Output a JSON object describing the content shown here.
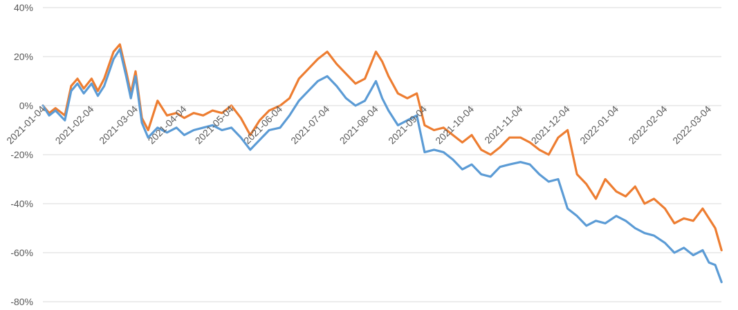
{
  "chart_data": {
    "type": "line",
    "grid": "horizontal",
    "x_axis_crosses_at": 0,
    "ylim": [
      -80,
      40
    ],
    "y_ticks": [
      "40%",
      "20%",
      "0%",
      "-20%",
      "-40%",
      "-60%",
      "-80%"
    ],
    "x_ticks": [
      "2021-01-04",
      "2021-02-04",
      "2021-03-04",
      "2021-04-04",
      "2021-05-04",
      "2021-06-04",
      "2021-07-04",
      "2021-08-04",
      "2021-09-04",
      "2021-10-04",
      "2021-11-04",
      "2021-12-04",
      "2022-01-04",
      "2022-02-04",
      "2022-03-04"
    ],
    "series": [
      {
        "color": "#ED7D31",
        "x": [
          "2021-01-04",
          "2021-01-08",
          "2021-01-12",
          "2021-01-18",
          "2021-01-22",
          "2021-01-26",
          "2021-01-30",
          "2021-02-04",
          "2021-02-08",
          "2021-02-12",
          "2021-02-18",
          "2021-02-22",
          "2021-02-26",
          "2021-03-01",
          "2021-03-04",
          "2021-03-08",
          "2021-03-12",
          "2021-03-18",
          "2021-03-24",
          "2021-03-30",
          "2021-04-04",
          "2021-04-10",
          "2021-04-16",
          "2021-04-22",
          "2021-04-28",
          "2021-05-04",
          "2021-05-10",
          "2021-05-16",
          "2021-05-22",
          "2021-05-28",
          "2021-06-04",
          "2021-06-10",
          "2021-06-16",
          "2021-06-22",
          "2021-06-28",
          "2021-07-04",
          "2021-07-10",
          "2021-07-16",
          "2021-07-22",
          "2021-07-28",
          "2021-08-04",
          "2021-08-08",
          "2021-08-12",
          "2021-08-18",
          "2021-08-24",
          "2021-08-30",
          "2021-09-04",
          "2021-09-10",
          "2021-09-16",
          "2021-09-22",
          "2021-09-28",
          "2021-10-04",
          "2021-10-10",
          "2021-10-16",
          "2021-10-22",
          "2021-10-28",
          "2021-11-04",
          "2021-11-10",
          "2021-11-16",
          "2021-11-22",
          "2021-11-28",
          "2021-12-04",
          "2021-12-10",
          "2021-12-16",
          "2021-12-22",
          "2021-12-28",
          "2022-01-04",
          "2022-01-10",
          "2022-01-16",
          "2022-01-22",
          "2022-01-28",
          "2022-02-04",
          "2022-02-10",
          "2022-02-16",
          "2022-02-22",
          "2022-02-28",
          "2022-03-04",
          "2022-03-08",
          "2022-03-12"
        ],
        "values": [
          0,
          -3,
          -1,
          -4,
          8,
          11,
          7,
          11,
          6,
          11,
          22,
          25,
          14,
          5,
          14,
          -5,
          -10,
          2,
          -4,
          -3,
          -5,
          -3,
          -4,
          -2,
          -3,
          0,
          -5,
          -12,
          -6,
          -2,
          0,
          3,
          11,
          15,
          19,
          22,
          17,
          13,
          9,
          11,
          22,
          18,
          12,
          5,
          3,
          5,
          -8,
          -10,
          -9,
          -12,
          -15,
          -12,
          -18,
          -20,
          -17,
          -13,
          -13,
          -15,
          -18,
          -20,
          -13,
          -10,
          -28,
          -32,
          -38,
          -30,
          -35,
          -37,
          -33,
          -40,
          -38,
          -42,
          -48,
          -46,
          -47,
          -42,
          -46,
          -50,
          -59
        ]
      },
      {
        "color": "#5B9BD5",
        "x": [
          "2021-01-04",
          "2021-01-08",
          "2021-01-12",
          "2021-01-18",
          "2021-01-22",
          "2021-01-26",
          "2021-01-30",
          "2021-02-04",
          "2021-02-08",
          "2021-02-12",
          "2021-02-18",
          "2021-02-22",
          "2021-02-26",
          "2021-03-01",
          "2021-03-04",
          "2021-03-08",
          "2021-03-12",
          "2021-03-18",
          "2021-03-24",
          "2021-03-30",
          "2021-04-04",
          "2021-04-10",
          "2021-04-16",
          "2021-04-22",
          "2021-04-28",
          "2021-05-04",
          "2021-05-10",
          "2021-05-16",
          "2021-05-22",
          "2021-05-28",
          "2021-06-04",
          "2021-06-10",
          "2021-06-16",
          "2021-06-22",
          "2021-06-28",
          "2021-07-04",
          "2021-07-10",
          "2021-07-16",
          "2021-07-22",
          "2021-07-28",
          "2021-08-04",
          "2021-08-08",
          "2021-08-12",
          "2021-08-18",
          "2021-08-24",
          "2021-08-30",
          "2021-09-04",
          "2021-09-10",
          "2021-09-16",
          "2021-09-22",
          "2021-09-28",
          "2021-10-04",
          "2021-10-10",
          "2021-10-16",
          "2021-10-22",
          "2021-10-28",
          "2021-11-04",
          "2021-11-10",
          "2021-11-16",
          "2021-11-22",
          "2021-11-28",
          "2021-12-04",
          "2021-12-10",
          "2021-12-16",
          "2021-12-22",
          "2021-12-28",
          "2022-01-04",
          "2022-01-10",
          "2022-01-16",
          "2022-01-22",
          "2022-01-28",
          "2022-02-04",
          "2022-02-10",
          "2022-02-16",
          "2022-02-22",
          "2022-02-28",
          "2022-03-04",
          "2022-03-08",
          "2022-03-12"
        ],
        "values": [
          0,
          -4,
          -2,
          -6,
          6,
          9,
          5,
          9,
          4,
          8,
          19,
          23,
          12,
          3,
          12,
          -7,
          -13,
          -9,
          -11,
          -9,
          -12,
          -10,
          -9,
          -8,
          -10,
          -9,
          -13,
          -18,
          -14,
          -10,
          -9,
          -4,
          2,
          6,
          10,
          12,
          8,
          3,
          0,
          2,
          10,
          3,
          -2,
          -8,
          -6,
          -4,
          -19,
          -18,
          -19,
          -22,
          -26,
          -24,
          -28,
          -29,
          -25,
          -24,
          -23,
          -24,
          -28,
          -31,
          -30,
          -42,
          -45,
          -49,
          -47,
          -48,
          -45,
          -47,
          -50,
          -52,
          -53,
          -56,
          -60,
          -58,
          -61,
          -59,
          -64,
          -65,
          -72
        ]
      }
    ]
  }
}
